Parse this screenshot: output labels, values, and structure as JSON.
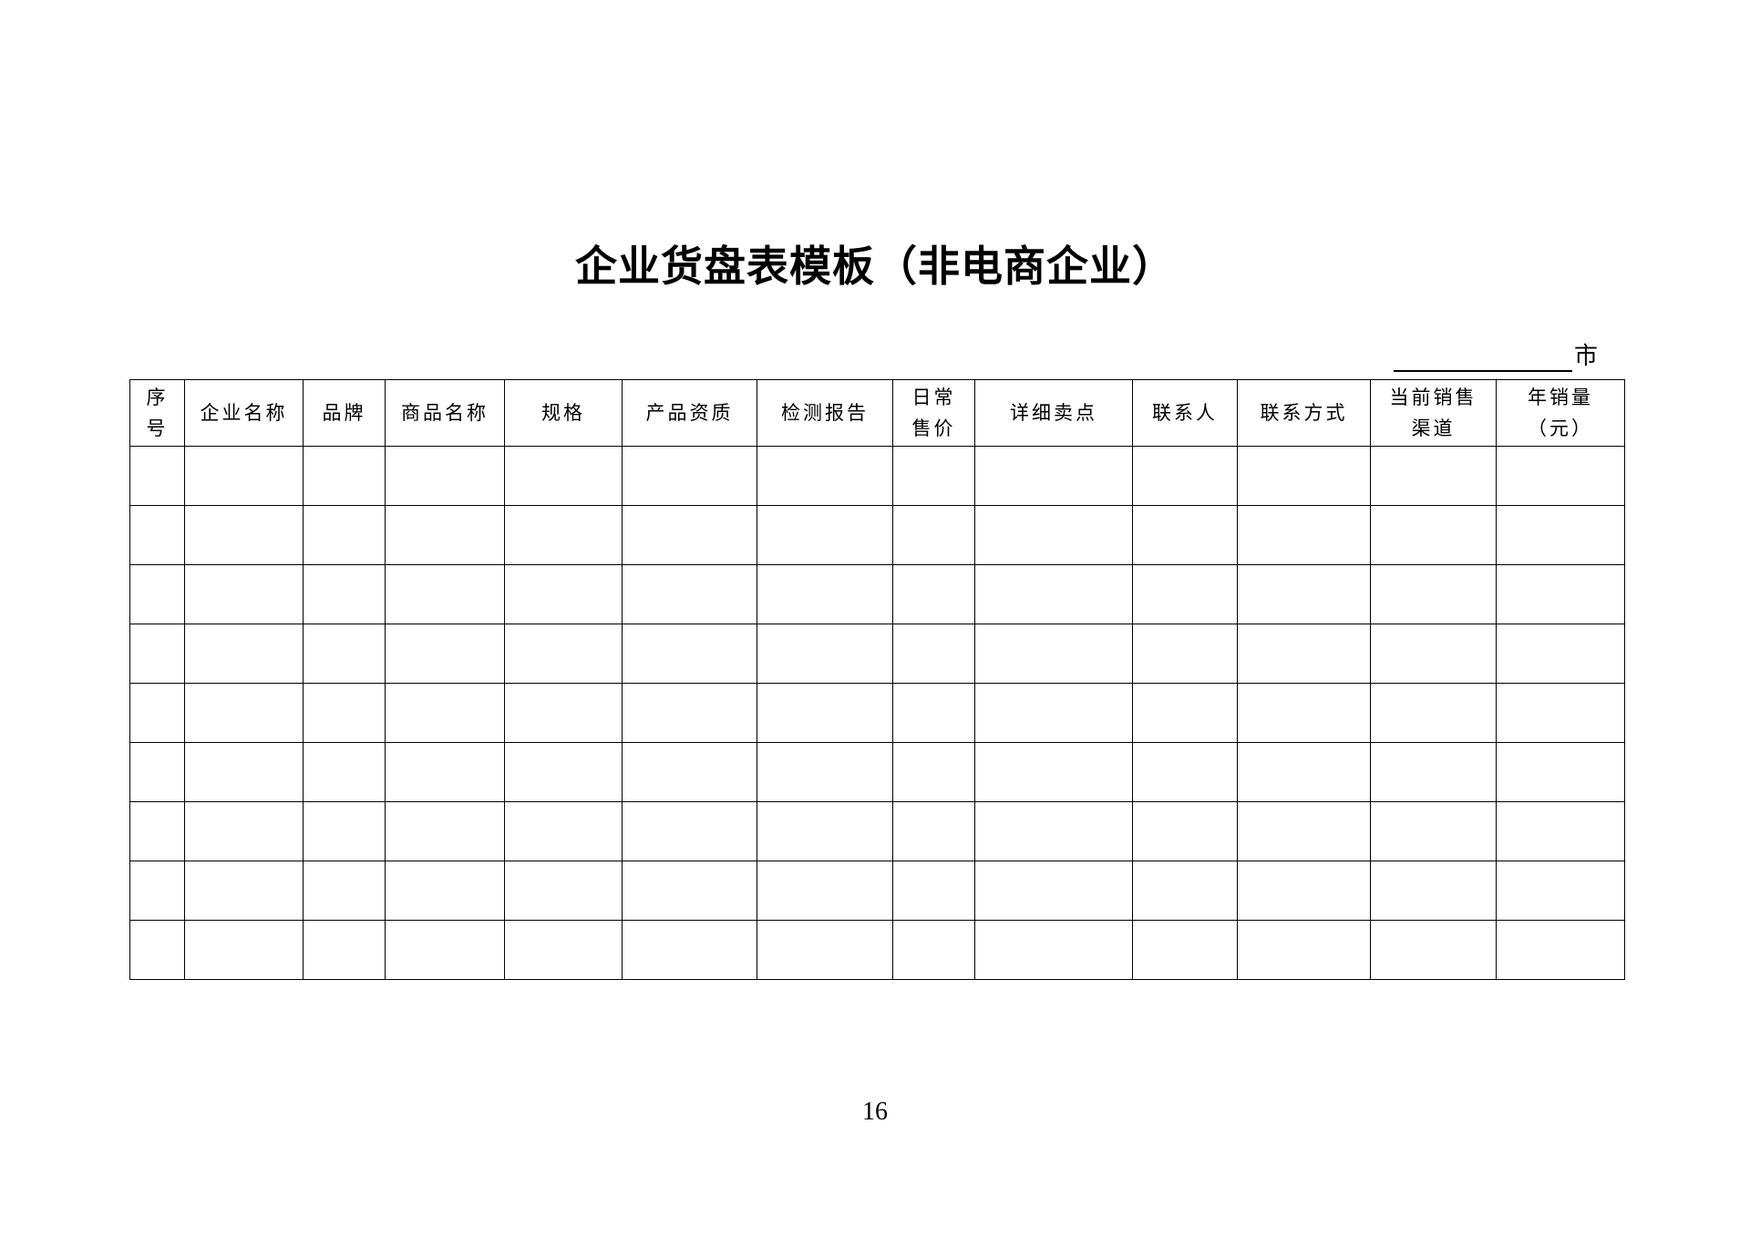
{
  "document": {
    "title": "企业货盘表模板（非电商企业）",
    "city_suffix": "市",
    "page_number": "16"
  },
  "table": {
    "headers": [
      "序\n号",
      "企业名称",
      "品牌",
      "商品名称",
      "规格",
      "产品资质",
      "检测报告",
      "日常\n售价",
      "详细卖点",
      "联系人",
      "联系方式",
      "当前销售\n渠道",
      "年销量\n（元）"
    ],
    "rows": [
      [
        "",
        "",
        "",
        "",
        "",
        "",
        "",
        "",
        "",
        "",
        "",
        "",
        ""
      ],
      [
        "",
        "",
        "",
        "",
        "",
        "",
        "",
        "",
        "",
        "",
        "",
        "",
        ""
      ],
      [
        "",
        "",
        "",
        "",
        "",
        "",
        "",
        "",
        "",
        "",
        "",
        "",
        ""
      ],
      [
        "",
        "",
        "",
        "",
        "",
        "",
        "",
        "",
        "",
        "",
        "",
        "",
        ""
      ],
      [
        "",
        "",
        "",
        "",
        "",
        "",
        "",
        "",
        "",
        "",
        "",
        "",
        ""
      ],
      [
        "",
        "",
        "",
        "",
        "",
        "",
        "",
        "",
        "",
        "",
        "",
        "",
        ""
      ],
      [
        "",
        "",
        "",
        "",
        "",
        "",
        "",
        "",
        "",
        "",
        "",
        "",
        ""
      ],
      [
        "",
        "",
        "",
        "",
        "",
        "",
        "",
        "",
        "",
        "",
        "",
        "",
        ""
      ],
      [
        "",
        "",
        "",
        "",
        "",
        "",
        "",
        "",
        "",
        "",
        "",
        "",
        ""
      ]
    ]
  }
}
